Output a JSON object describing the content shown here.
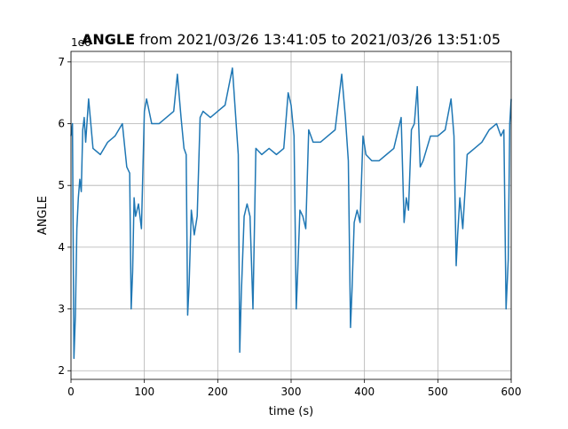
{
  "chart_data": {
    "type": "line",
    "title": "ANGLE",
    "subtitle": "from 2021/03/26 13:41:05 to 2021/03/26 13:51:05",
    "offset_label": "1e6",
    "x_label": "time (s)",
    "y_label": "ANGLE",
    "xlim": [
      0,
      600
    ],
    "xticks": [
      0,
      100,
      200,
      300,
      400,
      500,
      600
    ],
    "ylim": [
      1.86,
      7.17
    ],
    "yticks": [
      2,
      3,
      4,
      5,
      6,
      7
    ],
    "grid": true,
    "series": [
      {
        "color": "#1f77b4",
        "x": [
          0,
          2,
          4,
          6,
          8,
          10,
          12,
          14,
          16,
          18,
          20,
          24,
          30,
          40,
          50,
          60,
          70,
          76,
          80,
          82,
          84,
          86,
          88,
          92,
          96,
          100,
          103,
          110,
          120,
          130,
          140,
          145,
          150,
          154,
          157,
          159,
          161,
          164,
          168,
          172,
          176,
          180,
          190,
          200,
          210,
          220,
          224,
          228,
          230,
          232,
          236,
          240,
          244,
          248,
          252,
          260,
          270,
          280,
          290,
          296,
          300,
          304,
          307,
          309,
          312,
          316,
          320,
          324,
          330,
          340,
          350,
          360,
          369,
          374,
          378,
          381,
          383,
          386,
          390,
          394,
          398,
          402,
          410,
          420,
          430,
          440,
          450,
          454,
          457,
          460,
          464,
          468,
          472,
          476,
          480,
          490,
          500,
          510,
          518,
          522,
          525,
          527,
          530,
          534,
          540,
          550,
          560,
          570,
          580,
          586,
          590,
          593,
          596,
          598,
          600
        ],
        "values": [
          5.8,
          6.0,
          2.2,
          2.9,
          4.3,
          4.8,
          5.1,
          4.9,
          5.9,
          6.1,
          5.7,
          6.4,
          5.6,
          5.5,
          5.7,
          5.8,
          6.0,
          5.3,
          5.2,
          3.0,
          3.6,
          4.8,
          4.5,
          4.7,
          4.3,
          6.2,
          6.4,
          6.0,
          6.0,
          6.1,
          6.2,
          6.8,
          6.1,
          5.6,
          5.5,
          2.9,
          3.4,
          4.6,
          4.2,
          4.5,
          6.1,
          6.2,
          6.1,
          6.2,
          6.3,
          6.9,
          6.2,
          5.5,
          2.3,
          3.2,
          4.5,
          4.7,
          4.5,
          3.0,
          5.6,
          5.5,
          5.6,
          5.5,
          5.6,
          6.5,
          6.3,
          5.8,
          3.0,
          3.6,
          4.6,
          4.5,
          4.3,
          5.9,
          5.7,
          5.7,
          5.8,
          5.9,
          6.8,
          6.1,
          5.4,
          2.7,
          3.3,
          4.4,
          4.6,
          4.4,
          5.8,
          5.5,
          5.4,
          5.4,
          5.5,
          5.6,
          6.1,
          4.4,
          4.8,
          4.6,
          5.9,
          6.0,
          6.6,
          5.3,
          5.4,
          5.8,
          5.8,
          5.9,
          6.4,
          5.8,
          3.7,
          4.2,
          4.8,
          4.3,
          5.5,
          5.6,
          5.7,
          5.9,
          6.0,
          5.8,
          5.9,
          3.0,
          3.8,
          6.0,
          6.4
        ]
      }
    ]
  }
}
